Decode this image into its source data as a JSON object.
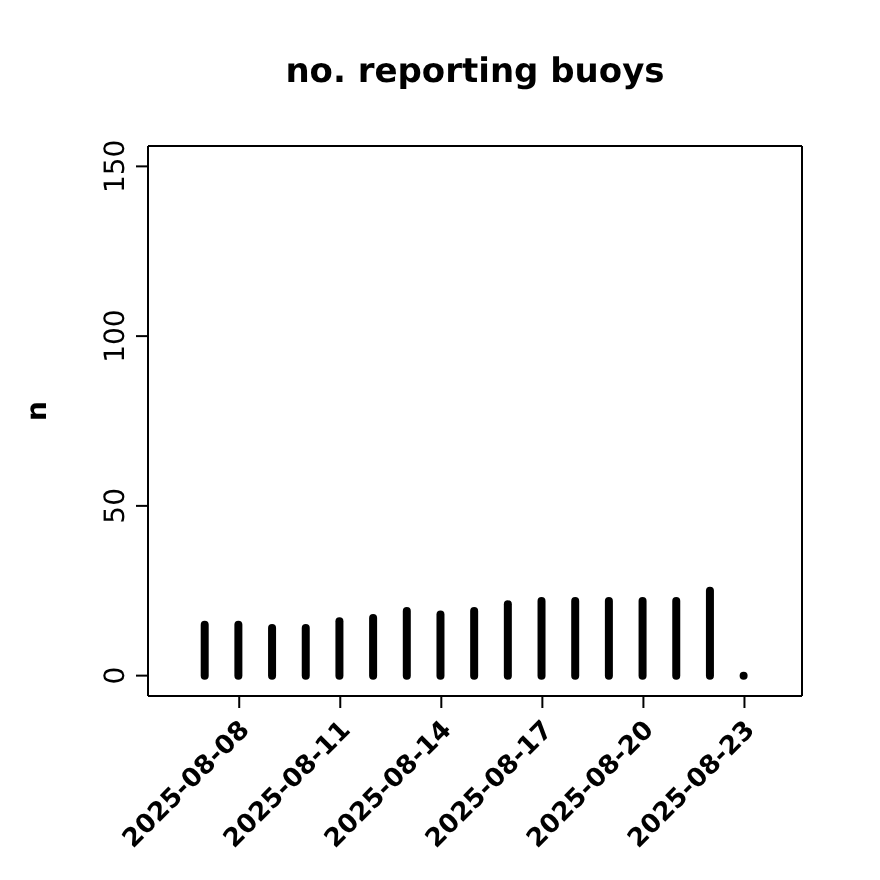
{
  "chart_data": {
    "type": "bar",
    "title": "no. reporting buoys",
    "ylabel": "n",
    "x": [
      "2025-08-07",
      "2025-08-08",
      "2025-08-09",
      "2025-08-10",
      "2025-08-11",
      "2025-08-12",
      "2025-08-13",
      "2025-08-14",
      "2025-08-15",
      "2025-08-16",
      "2025-08-17",
      "2025-08-18",
      "2025-08-19",
      "2025-08-20",
      "2025-08-21",
      "2025-08-22",
      "2025-08-23"
    ],
    "values": [
      15,
      15,
      14,
      14,
      16,
      17,
      19,
      18,
      19,
      21,
      22,
      22,
      22,
      22,
      22,
      25,
      0
    ],
    "color": "#000000",
    "xlim": [
      "2025-08-05T07:00",
      "2025-08-24T17:00"
    ],
    "xticks": [
      {
        "value": "2025-08-08",
        "label": "2025-08-08"
      },
      {
        "value": "2025-08-11",
        "label": "2025-08-11"
      },
      {
        "value": "2025-08-14",
        "label": "2025-08-14"
      },
      {
        "value": "2025-08-17",
        "label": "2025-08-17"
      },
      {
        "value": "2025-08-20",
        "label": "2025-08-20"
      },
      {
        "value": "2025-08-23",
        "label": "2025-08-23"
      }
    ],
    "ylim": [
      -6,
      156
    ],
    "yticks": [
      0,
      50,
      100,
      150
    ],
    "grid": false,
    "legend": false
  }
}
